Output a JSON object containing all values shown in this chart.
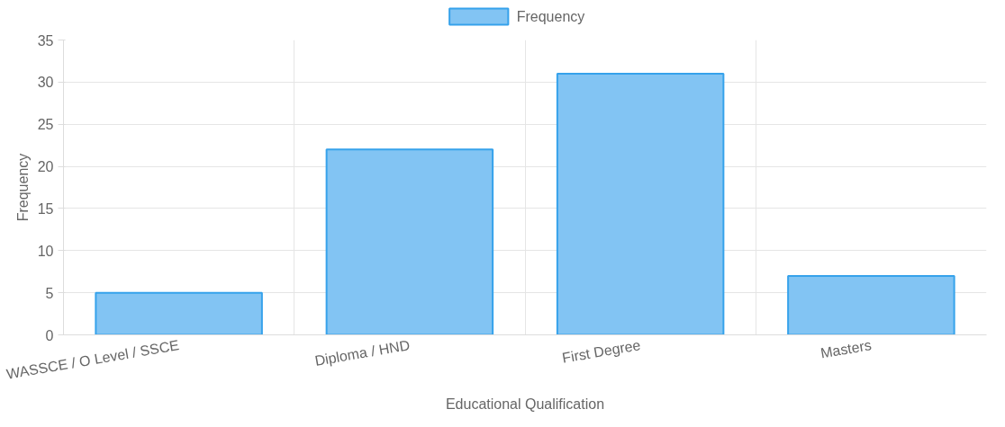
{
  "chart_data": {
    "type": "bar",
    "xlabel": "Educational Qualification",
    "ylabel": "Frequency",
    "categories": [
      "WASSCE / O Level / SSCE",
      "Diploma / HND",
      "First Degree",
      "Masters"
    ],
    "series": [
      {
        "name": "Frequency",
        "color": "#82c4f3",
        "values": [
          5,
          22,
          31,
          7
        ]
      }
    ],
    "ylim": [
      0,
      35
    ],
    "yticks": [
      0,
      5,
      10,
      15,
      20,
      25,
      30,
      35
    ],
    "grid": true,
    "legend": "top"
  }
}
